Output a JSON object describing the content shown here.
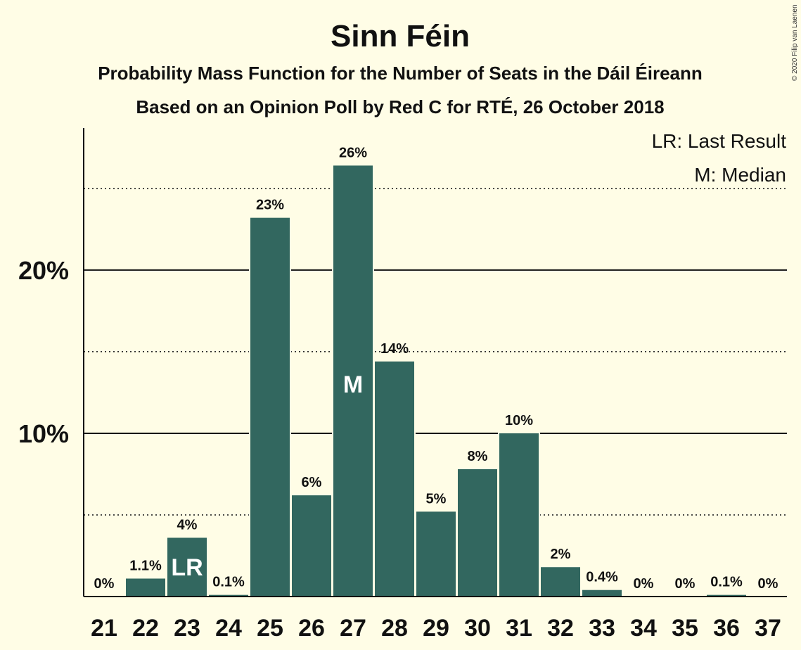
{
  "colors": {
    "bar": "#32675F",
    "background": "#FFFDE6",
    "text": "#111111"
  },
  "copyright": "© 2020 Filip van Laenen",
  "chart_data": {
    "type": "bar",
    "title": "Sinn Féin",
    "subtitle": "Probability Mass Function for the Number of Seats in the Dáil Éireann",
    "subtitle2": "Based on an Opinion Poll by Red C for RTÉ, 26 October 2018",
    "legend": [
      "LR: Last Result",
      "M: Median"
    ],
    "legend_position": "top-right",
    "categories": [
      "21",
      "22",
      "23",
      "24",
      "25",
      "26",
      "27",
      "28",
      "29",
      "30",
      "31",
      "32",
      "33",
      "34",
      "35",
      "36",
      "37"
    ],
    "values": [
      0,
      1.1,
      3.6,
      0.1,
      23.2,
      6.2,
      26.4,
      14.4,
      5.2,
      7.8,
      10,
      1.8,
      0.4,
      0,
      0,
      0.1,
      0
    ],
    "data_labels": [
      "0%",
      "1.1%",
      "4%",
      "0.1%",
      "23%",
      "6%",
      "26%",
      "14%",
      "5%",
      "8%",
      "10%",
      "2%",
      "0.4%",
      "0%",
      "0%",
      "0.1%",
      "0%"
    ],
    "bar_markers": {
      "23": "LR",
      "27": "M"
    },
    "yticks": [
      10,
      20
    ],
    "ytick_labels": [
      "10%",
      "20%"
    ],
    "gridlines_dotted": [
      5,
      15,
      25
    ],
    "ylim": [
      0,
      28.7
    ]
  }
}
